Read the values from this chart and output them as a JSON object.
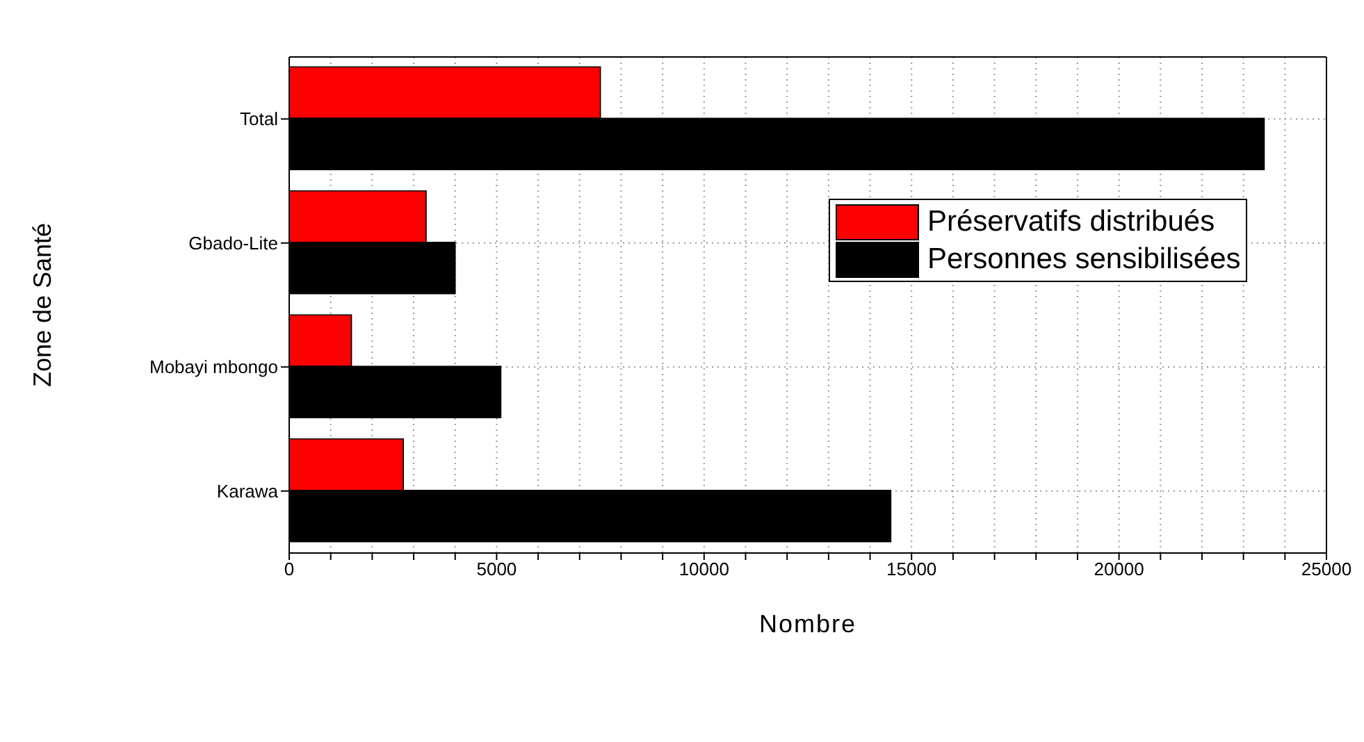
{
  "chart_data": {
    "type": "bar",
    "orientation": "horizontal",
    "categories": [
      "Total",
      "Gbado-Lite",
      "Mobayi mbongo",
      "Karawa"
    ],
    "series": [
      {
        "name": "Préservatifs distribués",
        "color": "#ff0000",
        "values": [
          7500,
          3300,
          1500,
          2750
        ]
      },
      {
        "name": "Personnes sensibilisées",
        "color": "#000000",
        "values": [
          23500,
          4000,
          5100,
          14500
        ]
      }
    ],
    "xlabel": "Nombre",
    "ylabel": "Zone de Santé",
    "xlim": [
      0,
      25000
    ],
    "xticks": [
      0,
      {
        "value": 1000,
        "label": null
      },
      {
        "value": 2000,
        "label": null
      },
      {
        "value": 3000,
        "label": null
      },
      {
        "value": 4000,
        "label": null
      },
      5000,
      {
        "value": 6000,
        "label": null
      },
      {
        "value": 7000,
        "label": null
      },
      {
        "value": 8000,
        "label": null
      },
      {
        "value": 9000,
        "label": null
      },
      10000,
      {
        "value": 11000,
        "label": null
      },
      {
        "value": 12000,
        "label": null
      },
      {
        "value": 13000,
        "label": null
      },
      {
        "value": 14000,
        "label": null
      },
      15000,
      {
        "value": 16000,
        "label": null
      },
      {
        "value": 17000,
        "label": null
      },
      {
        "value": 18000,
        "label": null
      },
      {
        "value": 19000,
        "label": null
      },
      20000,
      {
        "value": 21000,
        "label": null
      },
      {
        "value": 22000,
        "label": null
      },
      {
        "value": 23000,
        "label": null
      },
      {
        "value": 24000,
        "label": null
      },
      25000
    ],
    "grid": true,
    "legend": "right"
  }
}
